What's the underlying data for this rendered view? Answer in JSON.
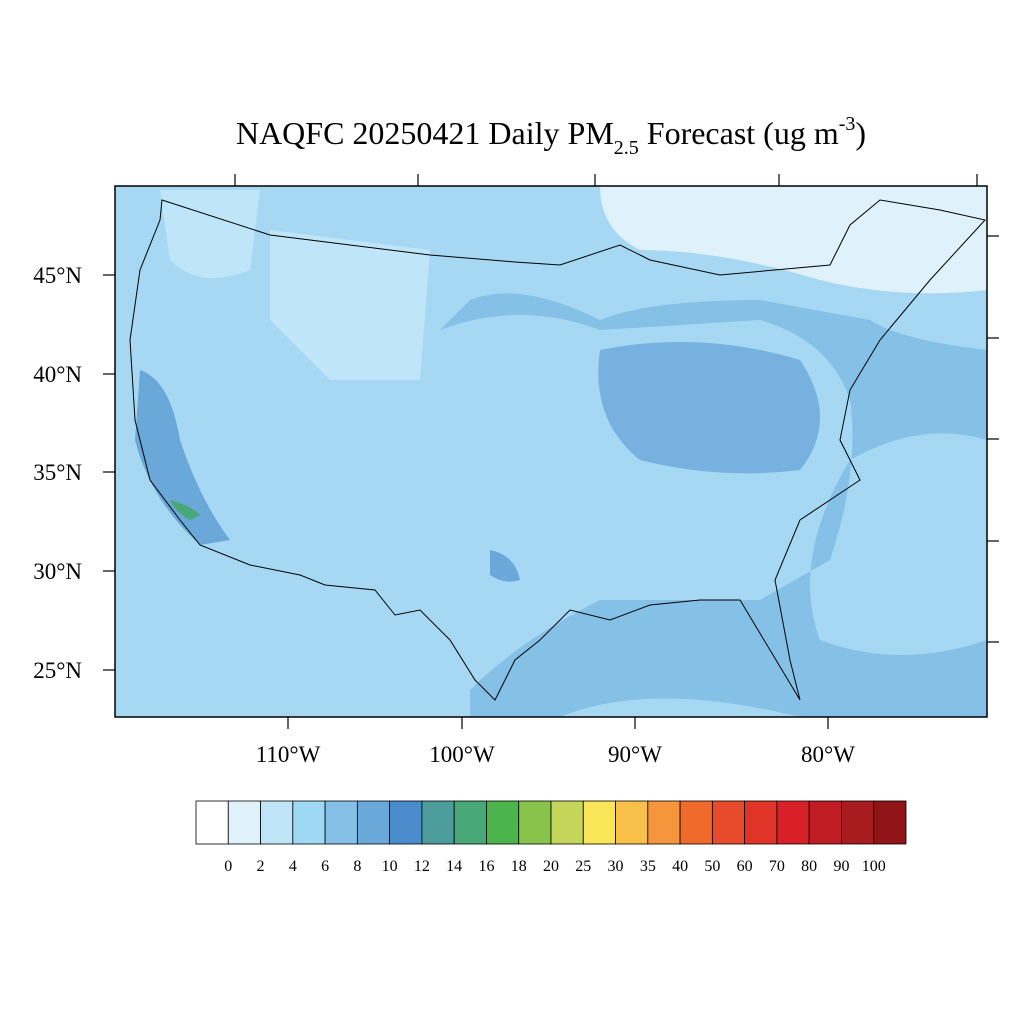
{
  "title": {
    "main": "NAQFC 20250421 Daily PM",
    "subscript": "2.5",
    "rest": " Forecast (ug m",
    "superscript": "-3",
    "close": ")"
  },
  "map": {
    "lat_labels": [
      "45°N",
      "40°N",
      "35°N",
      "30°N",
      "25°N"
    ],
    "lon_labels": [
      "110°W",
      "100°W",
      "90°W",
      "80°W"
    ]
  },
  "colorbar": {
    "colors": [
      "#ffffff",
      "#dff2fb",
      "#bfe6f8",
      "#9fd8f4",
      "#85c0e6",
      "#6aa8da",
      "#4a8ccc",
      "#4c9c9c",
      "#48a878",
      "#4bb44a",
      "#88c44c",
      "#c4d65a",
      "#f8e658",
      "#f8c048",
      "#f5963c",
      "#f06a2c",
      "#e84a2c",
      "#e03428",
      "#d82028",
      "#c01c24",
      "#a81c20",
      "#901418"
    ],
    "labels": [
      "0",
      "2",
      "4",
      "6",
      "8",
      "10",
      "12",
      "14",
      "16",
      "18",
      "20",
      "25",
      "30",
      "35",
      "40",
      "50",
      "60",
      "70",
      "80",
      "90",
      "100"
    ]
  }
}
